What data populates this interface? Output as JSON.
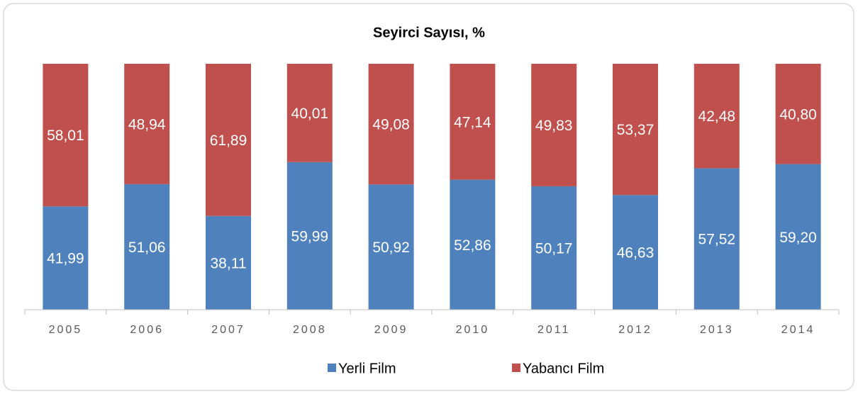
{
  "chart_data": {
    "type": "stacked_bar",
    "title": "Seyirci Sayısı, %",
    "categories": [
      "2005",
      "2006",
      "2007",
      "2008",
      "2009",
      "2010",
      "2011",
      "2012",
      "2013",
      "2014"
    ],
    "series": [
      {
        "name": "Yerli Film",
        "color": "#4f81bd",
        "values": [
          41.99,
          51.06,
          38.11,
          59.99,
          50.92,
          52.86,
          50.17,
          46.63,
          57.52,
          59.2
        ],
        "value_labels": [
          "41,99",
          "51,06",
          "38,11",
          "59,99",
          "50,92",
          "52,86",
          "50,17",
          "46,63",
          "57,52",
          "59,20"
        ]
      },
      {
        "name": "Yabancı Film",
        "color": "#c0504d",
        "values": [
          58.01,
          48.94,
          61.89,
          40.01,
          49.08,
          47.14,
          49.83,
          53.37,
          42.48,
          40.8
        ],
        "value_labels": [
          "58,01",
          "48,94",
          "61,89",
          "40,01",
          "49,08",
          "47,14",
          "49,83",
          "53,37",
          "42,48",
          "40,80"
        ]
      }
    ],
    "ylim": [
      0,
      100
    ]
  }
}
